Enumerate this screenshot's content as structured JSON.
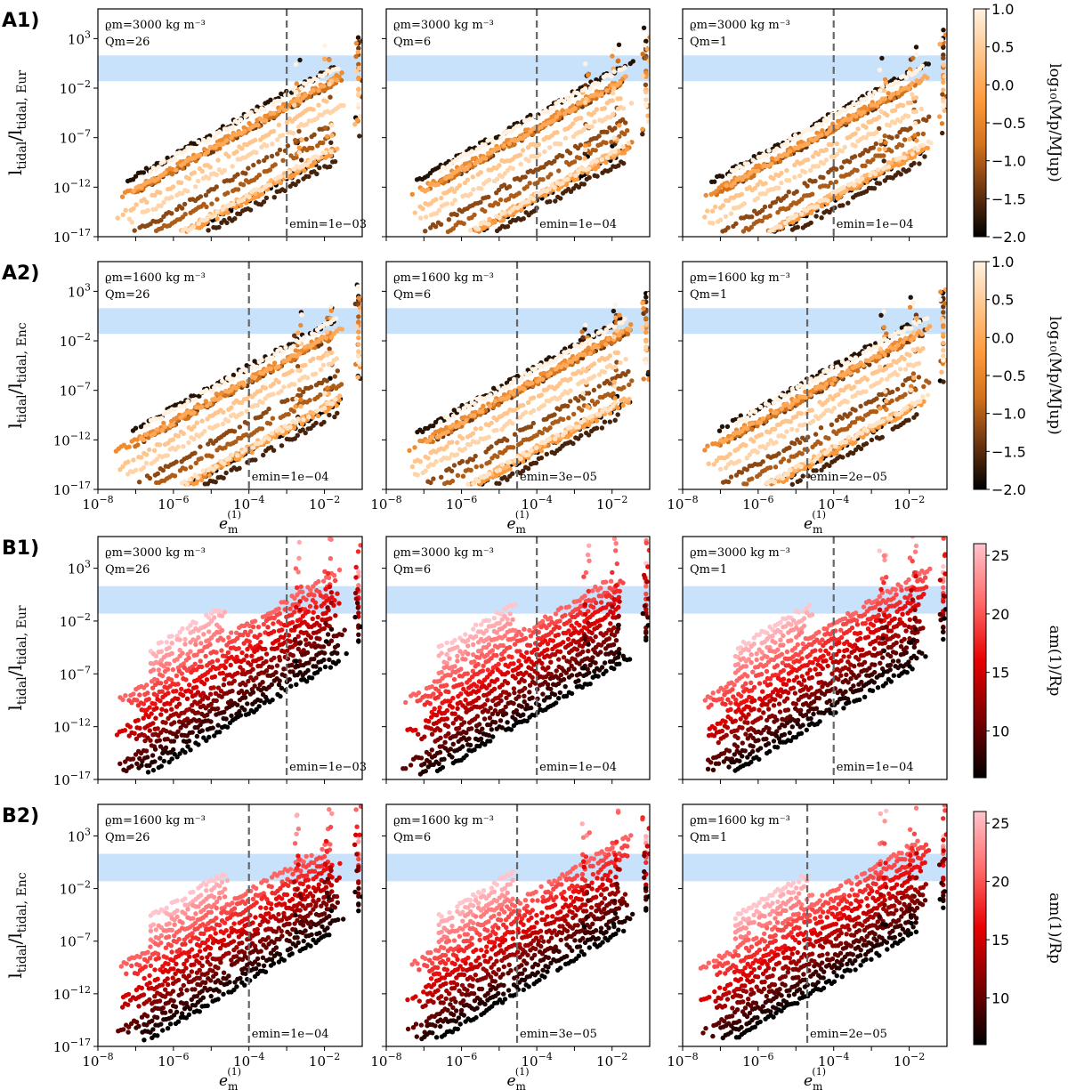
{
  "figure": {
    "rows": [
      {
        "label": "A1)",
        "ylabel_main": "l",
        "ylabel_sub": "tidal",
        "ylabel_den_sub": "tidal, Eur",
        "colormap": "mass"
      },
      {
        "label": "A2)",
        "ylabel_main": "l",
        "ylabel_sub": "tidal",
        "ylabel_den_sub": "tidal, Enc",
        "colormap": "mass"
      },
      {
        "label": "B1)",
        "ylabel_main": "l",
        "ylabel_sub": "tidal",
        "ylabel_den_sub": "tidal, Eur",
        "colormap": "radius"
      },
      {
        "label": "B2)",
        "ylabel_main": "l",
        "ylabel_sub": "tidal",
        "ylabel_den_sub": "tidal, Enc",
        "colormap": "radius"
      }
    ],
    "panel_annotations": {
      "density_eur": "ϱm = 3000 kg m⁻³",
      "density_enc": "ϱm = 1600 kg m⁻³",
      "q_values": [
        "Qm = 26",
        "Qm = 6",
        "Qm = 1"
      ],
      "emin_eur": [
        "emin = 1e−03",
        "emin = 1e−04",
        "emin = 1e−04"
      ],
      "emin_enc": [
        "emin = 1e−04",
        "emin = 3e−05",
        "emin = 2e−05"
      ]
    },
    "xlabel": "e",
    "xlabel_sub": "m",
    "xlabel_sup": "(1)",
    "colorbars": {
      "mass": {
        "label": "log₁₀(Mp/MJup)",
        "ticks": [
          "1.0",
          "0.5",
          "0.0",
          "−0.5",
          "−1.0",
          "−1.5",
          "−2.0"
        ],
        "range": [
          -2.0,
          1.0
        ],
        "colors": [
          "#000000",
          "#6b3510",
          "#d0711c",
          "#ff9a3c",
          "#ffc58c",
          "#fff2e2"
        ]
      },
      "radius": {
        "label": "am(1)/Rp",
        "ticks": [
          "25",
          "20",
          "15",
          "10"
        ],
        "range": [
          6,
          26
        ],
        "colors": [
          "#000000",
          "#7a0000",
          "#e80000",
          "#ff6a6a",
          "#ffc4cc"
        ]
      }
    },
    "band_color": "#c9e2fb",
    "vline_color": "#666666"
  },
  "chart_data": [
    {
      "type": "scatter",
      "panel": "A1-left",
      "title": "",
      "xlabel": "e_m^(1)",
      "ylabel": "l_tidal/l_tidal,Eur",
      "xlim": [
        1e-08,
        0.1
      ],
      "ylim": [
        1e-17,
        1000000.0
      ],
      "xscale": "log",
      "yscale": "log",
      "annotations": [
        "ϱm=3000 kg m⁻³",
        "Qm=26",
        "emin=1e−03"
      ],
      "vline_x": 0.001,
      "band_y": [
        0.05,
        20
      ],
      "color_by": "log10(Mp/MJup)"
    },
    {
      "type": "scatter",
      "panel": "A1-mid",
      "xlim": [
        1e-08,
        0.1
      ],
      "ylim": [
        1e-17,
        1000000.0
      ],
      "annotations": [
        "ϱm=3000 kg m⁻³",
        "Qm=6",
        "emin=1e−04"
      ],
      "vline_x": 0.0001,
      "band_y": [
        0.05,
        20
      ]
    },
    {
      "type": "scatter",
      "panel": "A1-right",
      "xlim": [
        1e-08,
        0.1
      ],
      "ylim": [
        1e-17,
        1000000.0
      ],
      "annotations": [
        "ϱm=3000 kg m⁻³",
        "Qm=1",
        "emin=1e−04"
      ],
      "vline_x": 0.0001,
      "band_y": [
        0.05,
        20
      ]
    },
    {
      "type": "scatter",
      "panel": "A2-left",
      "xlim": [
        1e-08,
        0.1
      ],
      "ylim": [
        1e-17,
        1000000.0
      ],
      "annotations": [
        "ϱm=1600 kg m⁻³",
        "Qm=26",
        "emin=1e−04"
      ],
      "vline_x": 0.0001,
      "band_y": [
        0.05,
        20
      ]
    },
    {
      "type": "scatter",
      "panel": "A2-mid",
      "xlim": [
        1e-08,
        0.1
      ],
      "ylim": [
        1e-17,
        1000000.0
      ],
      "annotations": [
        "ϱm=1600 kg m⁻³",
        "Qm=6",
        "emin=3e−05"
      ],
      "vline_x": 3e-05,
      "band_y": [
        0.05,
        20
      ]
    },
    {
      "type": "scatter",
      "panel": "A2-right",
      "xlim": [
        1e-08,
        0.1
      ],
      "ylim": [
        1e-17,
        1000000.0
      ],
      "annotations": [
        "ϱm=1600 kg m⁻³",
        "Qm=1",
        "emin=2e−05"
      ],
      "vline_x": 2e-05,
      "band_y": [
        0.05,
        20
      ]
    },
    {
      "type": "scatter",
      "panel": "B1-left",
      "xlim": [
        1e-08,
        0.1
      ],
      "ylim": [
        1e-17,
        1000000.0
      ],
      "annotations": [
        "ϱm=3000 kg m⁻³",
        "Qm=26",
        "emin=1e−03"
      ],
      "vline_x": 0.001,
      "band_y": [
        0.05,
        20
      ],
      "color_by": "am(1)/Rp"
    },
    {
      "type": "scatter",
      "panel": "B1-mid",
      "xlim": [
        1e-08,
        0.1
      ],
      "ylim": [
        1e-17,
        1000000.0
      ],
      "annotations": [
        "ϱm=3000 kg m⁻³",
        "Qm=6",
        "emin=1e−04"
      ],
      "vline_x": 0.0001,
      "band_y": [
        0.05,
        20
      ]
    },
    {
      "type": "scatter",
      "panel": "B1-right",
      "xlim": [
        1e-08,
        0.1
      ],
      "ylim": [
        1e-17,
        1000000.0
      ],
      "annotations": [
        "ϱm=3000 kg m⁻³",
        "Qm=1",
        "emin=1e−04"
      ],
      "vline_x": 0.0001,
      "band_y": [
        0.05,
        20
      ]
    },
    {
      "type": "scatter",
      "panel": "B2-left",
      "xlim": [
        1e-08,
        0.1
      ],
      "ylim": [
        1e-17,
        1000000.0
      ],
      "annotations": [
        "ϱm=1600 kg m⁻³",
        "Qm=26",
        "emin=1e−04"
      ],
      "vline_x": 0.0001,
      "band_y": [
        0.05,
        20
      ]
    },
    {
      "type": "scatter",
      "panel": "B2-mid",
      "xlim": [
        1e-08,
        0.1
      ],
      "ylim": [
        1e-17,
        1000000.0
      ],
      "annotations": [
        "ϱm=1600 kg m⁻³",
        "Qm=6",
        "emin=3e−05"
      ],
      "vline_x": 3e-05,
      "band_y": [
        0.05,
        20
      ]
    },
    {
      "type": "scatter",
      "panel": "B2-right",
      "xlim": [
        1e-08,
        0.1
      ],
      "ylim": [
        1e-17,
        1000000.0
      ],
      "annotations": [
        "ϱm=1600 kg m⁻³",
        "Qm=1",
        "emin=2e−05"
      ],
      "vline_x": 2e-05,
      "band_y": [
        0.05,
        20
      ]
    }
  ]
}
